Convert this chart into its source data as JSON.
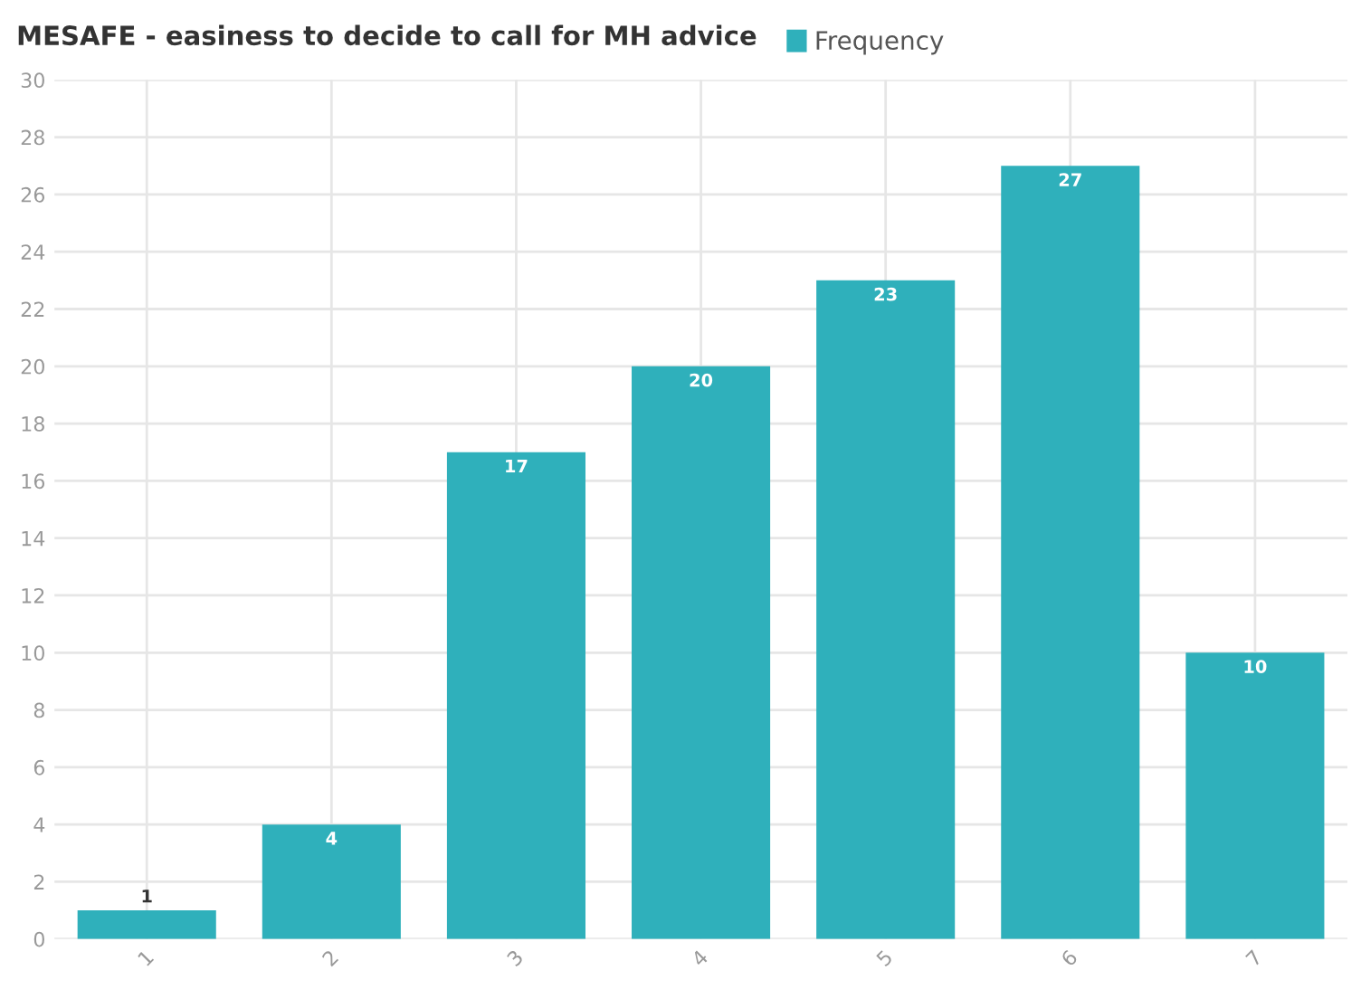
{
  "chart_data": {
    "type": "bar",
    "title": "MESAFE - easiness to decide to call for MH advice",
    "categories": [
      "1",
      "2",
      "3",
      "4",
      "5",
      "6",
      "7"
    ],
    "series": [
      {
        "name": "Frequency",
        "color": "#2fb0bb",
        "values": [
          1,
          4,
          17,
          20,
          23,
          27,
          10
        ]
      }
    ],
    "ylim": [
      0,
      30
    ],
    "yticks": [
      0,
      2,
      4,
      6,
      8,
      10,
      12,
      14,
      16,
      18,
      20,
      22,
      24,
      26,
      28,
      30
    ],
    "grid": true,
    "legend": "top",
    "data_labels": true
  }
}
